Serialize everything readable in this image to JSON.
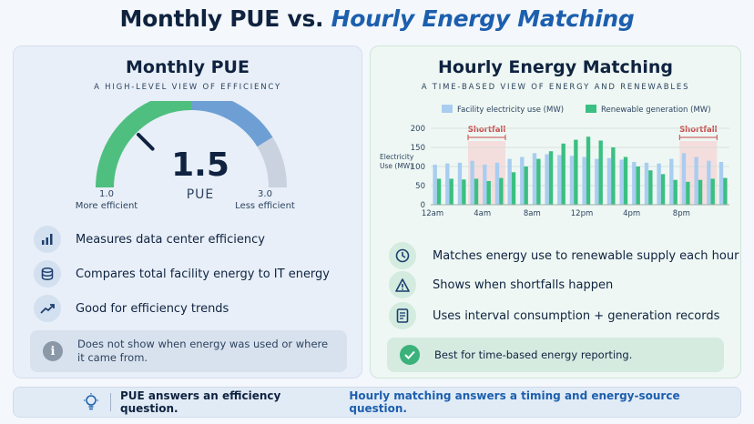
{
  "header": {
    "title_part1": "Monthly PUE vs.",
    "title_part2": "Hourly Energy Matching"
  },
  "left_panel": {
    "title": "Monthly PUE",
    "subtitle": "A HIGH-LEVEL VIEW OF EFFICIENCY",
    "gauge": {
      "value": "1.5",
      "value_num": 1.5,
      "unit": "PUE",
      "min": "1.0",
      "min_label": "More efficient",
      "max": "3.0",
      "max_label": "Less efficient",
      "min_num": 1.0,
      "max_num": 3.0
    },
    "features": [
      {
        "icon": "bar-chart-icon",
        "label": "Measures data center efficiency"
      },
      {
        "icon": "database-icon",
        "label": "Compares total facility energy to IT energy"
      },
      {
        "icon": "trend-up-icon",
        "label": "Good for efficiency trends"
      }
    ],
    "note": "Does not show when energy was used or where it came from.",
    "note_icon": "info-icon"
  },
  "right_panel": {
    "title": "Hourly Energy Matching",
    "subtitle": "A TIME-BASED VIEW OF ENERGY AND RENEWABLES",
    "features": [
      {
        "icon": "clock-icon",
        "label": "Matches energy use to renewable supply each hour"
      },
      {
        "icon": "warning-icon",
        "label": "Shows when shortfalls happen"
      },
      {
        "icon": "document-icon",
        "label": "Uses interval consumption + generation records"
      }
    ],
    "note": "Best for time-based energy reporting.",
    "note_icon": "check-icon"
  },
  "chart_data": {
    "type": "bar",
    "ylabel_line1": "Electricity",
    "ylabel_line2": "Use (MW)",
    "ylim": [
      0,
      200
    ],
    "yticks": [
      "0",
      "50",
      "100",
      "150",
      "200"
    ],
    "xticks": [
      "12am",
      "4am",
      "8am",
      "12pm",
      "4pm",
      "8pm"
    ],
    "categories": [
      "0",
      "1",
      "2",
      "3",
      "4",
      "5",
      "6",
      "7",
      "8",
      "9",
      "10",
      "11",
      "12",
      "13",
      "14",
      "15",
      "16",
      "17",
      "18",
      "19",
      "20",
      "21",
      "22",
      "23"
    ],
    "series": [
      {
        "name": "Facility electricity use (MW)",
        "color": "#a9cdf0",
        "values": [
          105,
          108,
          110,
          115,
          105,
          110,
          120,
          125,
          135,
          132,
          130,
          128,
          125,
          120,
          122,
          118,
          112,
          110,
          108,
          120,
          135,
          125,
          115,
          112
        ]
      },
      {
        "name": "Renewable generation (MW)",
        "color": "#3bbf82",
        "values": [
          68,
          68,
          66,
          68,
          62,
          70,
          85,
          100,
          120,
          140,
          160,
          170,
          178,
          168,
          150,
          125,
          100,
          90,
          80,
          65,
          60,
          65,
          68,
          70
        ]
      }
    ],
    "annotations": [
      {
        "label": "Shortfall",
        "from": 3,
        "to": 5
      },
      {
        "label": "Shortfall",
        "from": 20,
        "to": 22
      }
    ],
    "grid": true,
    "legend": "top"
  },
  "footer": {
    "icon": "lightbulb-icon",
    "text1": "PUE answers an efficiency question.",
    "text2": "Hourly matching answers a timing and energy-source question."
  }
}
